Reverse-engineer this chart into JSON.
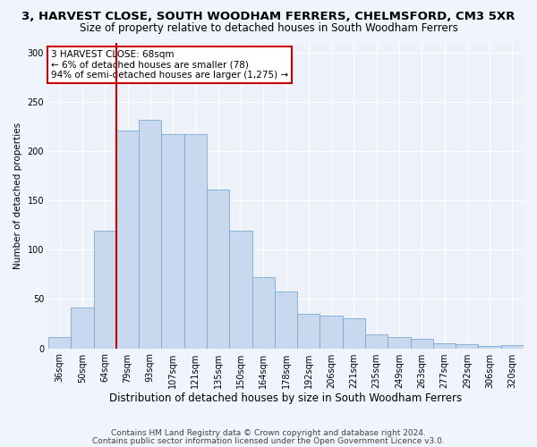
{
  "title1": "3, HARVEST CLOSE, SOUTH WOODHAM FERRERS, CHELMSFORD, CM3 5XR",
  "title2": "Size of property relative to detached houses in South Woodham Ferrers",
  "xlabel": "Distribution of detached houses by size in South Woodham Ferrers",
  "ylabel": "Number of detached properties",
  "categories": [
    "36sqm",
    "50sqm",
    "64sqm",
    "79sqm",
    "93sqm",
    "107sqm",
    "121sqm",
    "135sqm",
    "150sqm",
    "164sqm",
    "178sqm",
    "192sqm",
    "206sqm",
    "221sqm",
    "235sqm",
    "249sqm",
    "263sqm",
    "277sqm",
    "292sqm",
    "306sqm",
    "320sqm"
  ],
  "values": [
    11,
    41,
    119,
    221,
    232,
    217,
    217,
    161,
    119,
    72,
    58,
    35,
    33,
    30,
    14,
    11,
    10,
    5,
    4,
    2,
    3
  ],
  "bar_color": "#c8d8ee",
  "bar_edge_color": "#7aabcf",
  "vline_color": "#cc0000",
  "annotation_text": "3 HARVEST CLOSE: 68sqm\n← 6% of detached houses are smaller (78)\n94% of semi-detached houses are larger (1,275) →",
  "annotation_box_color": "#ffffff",
  "annotation_box_edge": "#cc0000",
  "footer1": "Contains HM Land Registry data © Crown copyright and database right 2024.",
  "footer2": "Contains public sector information licensed under the Open Government Licence v3.0.",
  "bg_color": "#f0f4fc",
  "plot_bg_color": "#edf2fa",
  "grid_color": "#ffffff",
  "ylim": [
    0,
    310
  ],
  "yticks": [
    0,
    50,
    100,
    150,
    200,
    250,
    300
  ],
  "title1_fontsize": 9.5,
  "title2_fontsize": 8.5,
  "xlabel_fontsize": 8.5,
  "ylabel_fontsize": 7.5,
  "tick_fontsize": 7,
  "footer_fontsize": 6.5,
  "annot_fontsize": 7.5
}
